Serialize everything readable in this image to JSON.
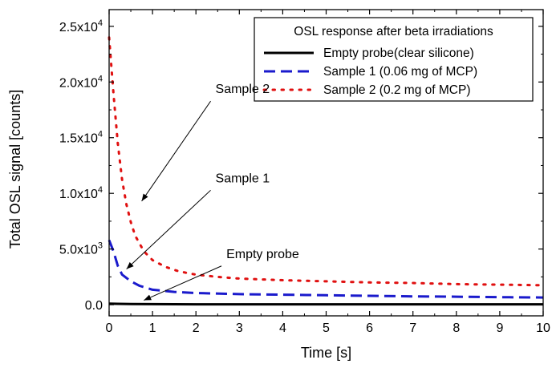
{
  "chart_data": {
    "type": "line",
    "xlabel": "Time [s]",
    "ylabel": "Total OSL signal [counts]",
    "xlim": [
      0,
      10
    ],
    "ylim": [
      -1000,
      26500
    ],
    "x_ticks": [
      0,
      1,
      2,
      3,
      4,
      5,
      6,
      7,
      8,
      9,
      10
    ],
    "x_tick_labels": [
      "0",
      "1",
      "2",
      "3",
      "4",
      "5",
      "6",
      "7",
      "8",
      "9",
      "10"
    ],
    "y_ticks": [
      0,
      5000,
      10000,
      15000,
      20000,
      25000
    ],
    "y_tick_labels": [
      {
        "mantissa": "0.0",
        "exponent": ""
      },
      {
        "mantissa": "5.0x10",
        "exponent": "3"
      },
      {
        "mantissa": "1.0x10",
        "exponent": "4"
      },
      {
        "mantissa": "1.5x10",
        "exponent": "4"
      },
      {
        "mantissa": "2.0x10",
        "exponent": "4"
      },
      {
        "mantissa": "2.5x10",
        "exponent": "4"
      }
    ],
    "grid": false,
    "legend_title": "OSL response after beta irradiations",
    "legend_position": "top-right",
    "series": [
      {
        "name": "Empty probe(clear silicone)",
        "color": "#000000",
        "style": "solid",
        "x": [
          0,
          0.2,
          0.5,
          1,
          2,
          3,
          4,
          5,
          6,
          7,
          8,
          9,
          10
        ],
        "y": [
          100,
          80,
          60,
          50,
          40,
          40,
          40,
          40,
          40,
          40,
          40,
          40,
          40
        ]
      },
      {
        "name": "Sample 1  (0.06 mg of MCP)",
        "color": "#1a1acc",
        "style": "dashed",
        "x": [
          0,
          0.1,
          0.2,
          0.3,
          0.5,
          0.7,
          1,
          1.5,
          2,
          3,
          4,
          5,
          6,
          7,
          8,
          9,
          10
        ],
        "y": [
          5800,
          4800,
          3500,
          2700,
          2100,
          1700,
          1350,
          1150,
          1050,
          950,
          900,
          850,
          800,
          750,
          720,
          680,
          650
        ]
      },
      {
        "name": "Sample 2  (0.2 mg of MCP)",
        "color": "#e01010",
        "style": "dotted",
        "x": [
          0,
          0.05,
          0.1,
          0.2,
          0.3,
          0.4,
          0.5,
          0.6,
          0.8,
          1,
          1.3,
          1.6,
          2,
          2.5,
          3,
          4,
          5,
          6,
          7,
          8,
          9,
          10
        ],
        "y": [
          24000,
          21500,
          19000,
          14500,
          11200,
          9000,
          7400,
          6200,
          4800,
          4000,
          3400,
          3000,
          2700,
          2500,
          2350,
          2200,
          2100,
          2000,
          1950,
          1850,
          1800,
          1750
        ]
      }
    ],
    "annotations": [
      {
        "text": "Sample 2",
        "label_at": [
          2.45,
          19000
        ],
        "arrow_to": [
          0.75,
          9300
        ]
      },
      {
        "text": "Sample 1",
        "label_at": [
          2.45,
          11000
        ],
        "arrow_to": [
          0.4,
          3200
        ]
      },
      {
        "text": "Empty probe",
        "label_at": [
          2.7,
          4200
        ],
        "arrow_to": [
          0.8,
          400
        ]
      }
    ]
  }
}
